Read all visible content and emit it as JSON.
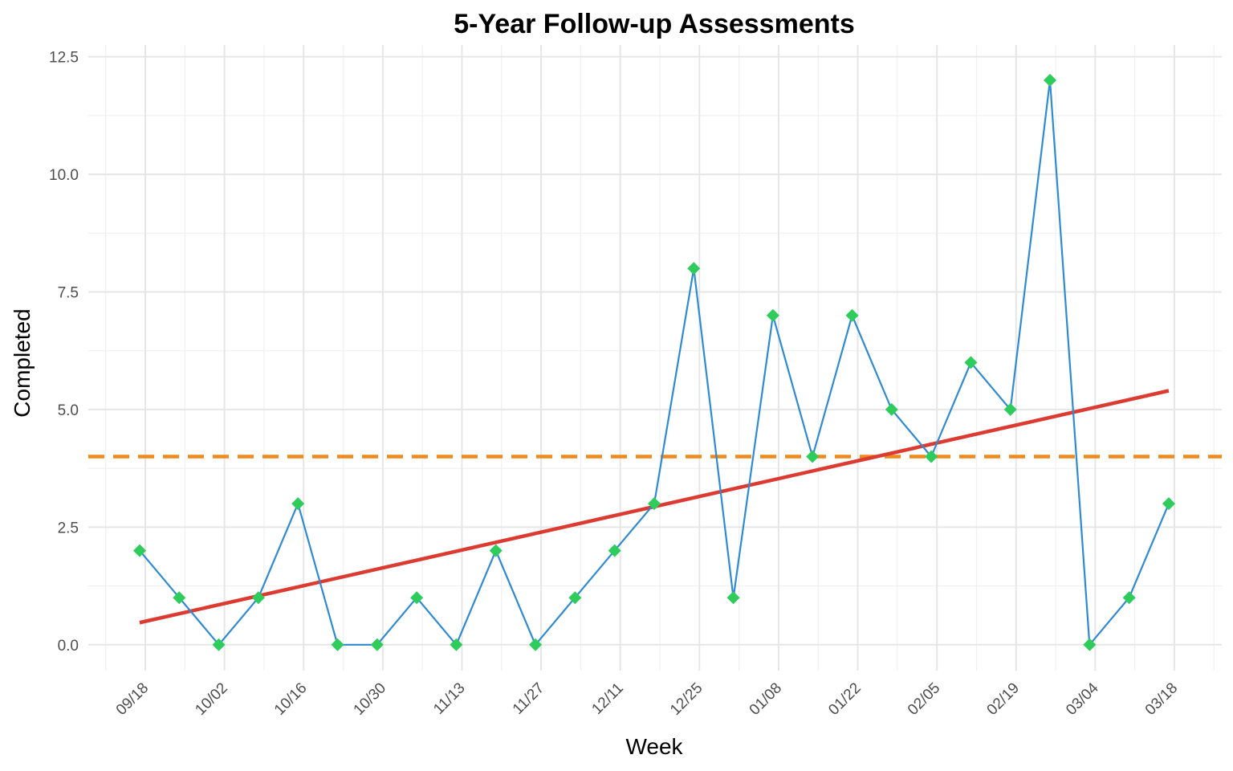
{
  "chart_data": {
    "type": "line",
    "title": "5-Year Follow-up Assessments",
    "xlabel": "Week",
    "ylabel": "Completed",
    "ylim": [
      -0.55,
      12.75
    ],
    "y_ticks": [
      0.0,
      2.5,
      5.0,
      7.5,
      10.0,
      12.5
    ],
    "y_tick_labels": [
      "0.0",
      "2.5",
      "5.0",
      "7.5",
      "10.0",
      "12.5"
    ],
    "x_tick_labels": [
      "09/18",
      "10/02",
      "10/16",
      "10/30",
      "11/13",
      "11/27",
      "12/11",
      "12/25",
      "01/08",
      "01/22",
      "02/05",
      "02/19",
      "03/04",
      "03/18"
    ],
    "x_tick_days": [
      0,
      14,
      28,
      42,
      56,
      70,
      84,
      98,
      112,
      126,
      140,
      154,
      168,
      182
    ],
    "series": [
      {
        "name": "Completed",
        "color": "#2f8ad4",
        "marker_color": "#2ecc5b",
        "x_days": [
          -1,
          6,
          13,
          20,
          27,
          34,
          41,
          48,
          55,
          62,
          69,
          76,
          83,
          90,
          97,
          104,
          111,
          118,
          125,
          132,
          139,
          146,
          153,
          160,
          167,
          174,
          181
        ],
        "values": [
          2,
          1,
          0,
          1,
          3,
          0,
          0,
          1,
          0,
          2,
          0,
          1,
          2,
          3,
          8,
          1,
          7,
          4,
          7,
          5,
          4,
          6,
          5,
          12,
          0,
          1,
          3
        ]
      }
    ],
    "trend_line": {
      "color": "#dc3b32",
      "x_days": [
        -1,
        181
      ],
      "values": [
        0.47,
        5.4
      ]
    },
    "reference_line": {
      "color": "#ee8a1e",
      "value": 4,
      "style": "dashed"
    }
  }
}
